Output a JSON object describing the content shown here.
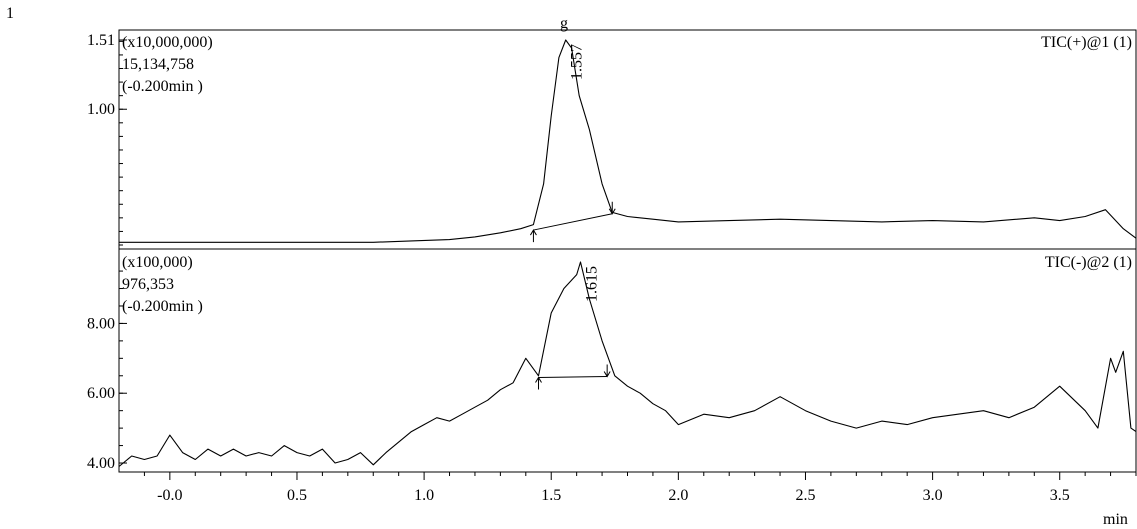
{
  "page": {
    "corner_number": "1",
    "top_caption": "g",
    "x_unit": "min"
  },
  "chart_data": [
    {
      "type": "line",
      "title": "TIC(+)@1 (1)",
      "scale_label": "(x10,000,000)",
      "max_intensity": "15,134,758",
      "time_offset": "(-0.200min )",
      "x_ticks": [
        "-0.0",
        "0.5",
        "1.0",
        "1.5",
        "2.0",
        "2.5",
        "3.0",
        "3.5"
      ],
      "x_tick_values": [
        0.0,
        0.5,
        1.0,
        1.5,
        2.0,
        2.5,
        3.0,
        3.5
      ],
      "xlim": [
        -0.2,
        3.8
      ],
      "ylim": [
        0.0,
        1.51
      ],
      "y_ticks": [
        "1.51",
        "1.00"
      ],
      "y_tick_values": [
        1.51,
        1.0
      ],
      "peak": {
        "label": "1.557",
        "rt": 1.557,
        "height": 1.51,
        "start": 1.43,
        "end": 1.74,
        "base_start": 0.11,
        "base_end": 0.23
      },
      "series": [
        {
          "x": [
            -0.2,
            0.0,
            0.2,
            0.4,
            0.6,
            0.8,
            0.95,
            1.1,
            1.2,
            1.3,
            1.38,
            1.43,
            1.47,
            1.5,
            1.53,
            1.557,
            1.58,
            1.61,
            1.65,
            1.7,
            1.74,
            1.8,
            1.9,
            2.0,
            2.2,
            2.4,
            2.6,
            2.8,
            3.0,
            3.2,
            3.4,
            3.5,
            3.6,
            3.68,
            3.75,
            3.8
          ],
          "y": [
            0.02,
            0.02,
            0.02,
            0.02,
            0.02,
            0.02,
            0.03,
            0.04,
            0.06,
            0.09,
            0.12,
            0.15,
            0.45,
            0.95,
            1.38,
            1.51,
            1.45,
            1.1,
            0.85,
            0.45,
            0.24,
            0.21,
            0.19,
            0.17,
            0.18,
            0.19,
            0.18,
            0.17,
            0.18,
            0.17,
            0.2,
            0.18,
            0.21,
            0.26,
            0.12,
            0.05
          ]
        }
      ]
    },
    {
      "type": "line",
      "title": "TIC(-)@2 (1)",
      "scale_label": "(x100,000)",
      "max_intensity": "976,353",
      "time_offset": "(-0.200min )",
      "x_ticks": [
        "-0.0",
        "0.5",
        "1.0",
        "1.5",
        "2.0",
        "2.5",
        "3.0",
        "3.5"
      ],
      "x_tick_values": [
        0.0,
        0.5,
        1.0,
        1.5,
        2.0,
        2.5,
        3.0,
        3.5
      ],
      "xlim": [
        -0.2,
        3.8
      ],
      "ylim": [
        3.8,
        9.76
      ],
      "y_ticks": [
        "8.00",
        "6.00",
        "4.00"
      ],
      "y_tick_values": [
        8.0,
        6.0,
        4.0
      ],
      "peak": {
        "label": "1.615",
        "rt": 1.615,
        "height": 9.76,
        "start": 1.45,
        "end": 1.72,
        "base_start": 6.45,
        "base_end": 6.48
      },
      "series": [
        {
          "x": [
            -0.2,
            -0.15,
            -0.1,
            -0.05,
            0.0,
            0.05,
            0.1,
            0.15,
            0.2,
            0.25,
            0.3,
            0.35,
            0.4,
            0.45,
            0.5,
            0.55,
            0.6,
            0.65,
            0.7,
            0.75,
            0.8,
            0.85,
            0.9,
            0.95,
            1.0,
            1.05,
            1.1,
            1.15,
            1.2,
            1.25,
            1.3,
            1.35,
            1.4,
            1.45,
            1.5,
            1.55,
            1.6,
            1.615,
            1.65,
            1.7,
            1.75,
            1.8,
            1.85,
            1.9,
            1.95,
            2.0,
            2.1,
            2.2,
            2.3,
            2.4,
            2.5,
            2.6,
            2.7,
            2.8,
            2.9,
            3.0,
            3.1,
            3.2,
            3.3,
            3.4,
            3.5,
            3.6,
            3.65,
            3.7,
            3.72,
            3.75,
            3.78,
            3.8
          ],
          "y": [
            3.9,
            4.2,
            4.1,
            4.2,
            4.8,
            4.3,
            4.1,
            4.4,
            4.2,
            4.4,
            4.2,
            4.3,
            4.2,
            4.5,
            4.3,
            4.2,
            4.4,
            4.0,
            4.1,
            4.3,
            3.95,
            4.3,
            4.6,
            4.9,
            5.1,
            5.3,
            5.2,
            5.4,
            5.6,
            5.8,
            6.1,
            6.3,
            7.0,
            6.5,
            8.3,
            9.0,
            9.4,
            9.76,
            8.7,
            7.5,
            6.5,
            6.2,
            6.0,
            5.7,
            5.5,
            5.1,
            5.4,
            5.3,
            5.5,
            5.9,
            5.5,
            5.2,
            5.0,
            5.2,
            5.1,
            5.3,
            5.4,
            5.5,
            5.3,
            5.6,
            6.2,
            5.5,
            5.0,
            7.0,
            6.6,
            7.2,
            5.0,
            4.9
          ]
        }
      ]
    }
  ]
}
